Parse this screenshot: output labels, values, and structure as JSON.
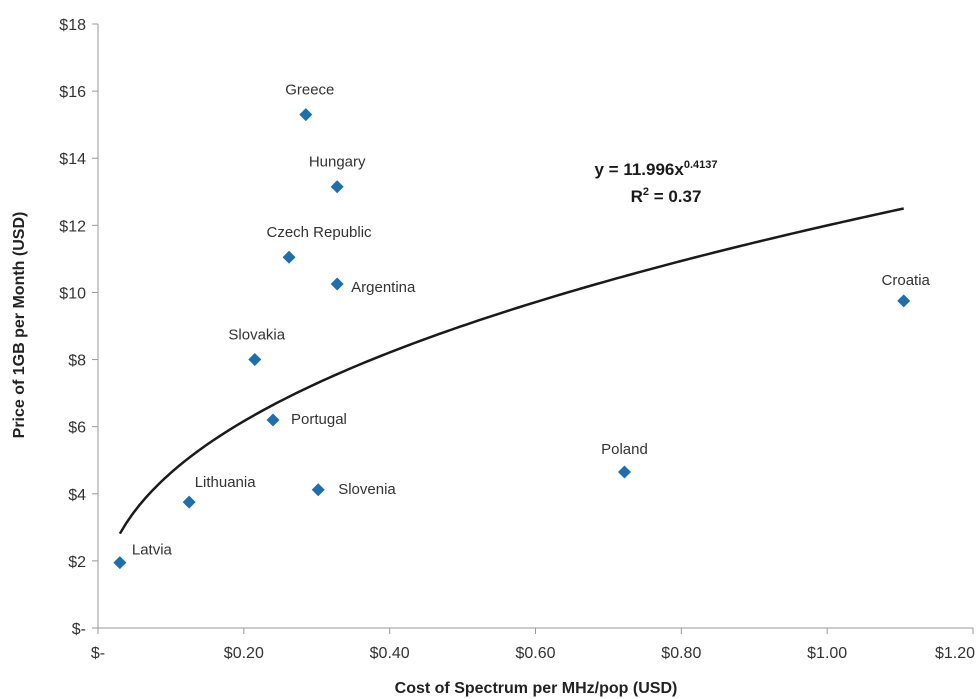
{
  "chart_data": {
    "type": "scatter",
    "title": "",
    "xlabel": "Cost of Spectrum per MHz/pop (USD)",
    "ylabel": "Price of 1GB per Month (USD)",
    "xlim": [
      0,
      1.2
    ],
    "ylim": [
      0,
      18
    ],
    "x_ticks": [
      0,
      0.2,
      0.4,
      0.6,
      0.8,
      1.0,
      1.2
    ],
    "x_tick_labels": [
      "$-",
      "$0.20",
      "$0.40",
      "$0.60",
      "$0.80",
      "$1.00",
      "$1.20"
    ],
    "y_ticks": [
      0,
      2,
      4,
      6,
      8,
      10,
      12,
      14,
      16,
      18
    ],
    "y_tick_labels": [
      "$-",
      "$2",
      "$4",
      "$6",
      "$8",
      "$10",
      "$12",
      "$14",
      "$16",
      "$18"
    ],
    "grid": false,
    "marker_color": "#1f6fad",
    "series": [
      {
        "points": [
          {
            "label": "Latvia",
            "x": 0.03,
            "y": 1.95
          },
          {
            "label": "Lithuania",
            "x": 0.125,
            "y": 3.75
          },
          {
            "label": "Slovakia",
            "x": 0.215,
            "y": 8.0
          },
          {
            "label": "Portugal",
            "x": 0.24,
            "y": 6.2
          },
          {
            "label": "Czech Republic",
            "x": 0.262,
            "y": 11.05
          },
          {
            "label": "Greece",
            "x": 0.285,
            "y": 15.3
          },
          {
            "label": "Slovenia",
            "x": 0.302,
            "y": 4.12
          },
          {
            "label": "Hungary",
            "x": 0.328,
            "y": 13.15
          },
          {
            "label": "Argentina",
            "x": 0.328,
            "y": 10.25
          },
          {
            "label": "Poland",
            "x": 0.722,
            "y": 4.65
          },
          {
            "label": "Croatia",
            "x": 1.105,
            "y": 9.75
          }
        ]
      }
    ],
    "trendline": {
      "type": "power",
      "coefficient": 11.996,
      "exponent": 0.4137,
      "x_range": [
        0.03,
        1.105
      ],
      "equation_prefix": "y = 11.996x",
      "equation_exponent": "0.4137",
      "r2_prefix": "R",
      "r2_sup": "2",
      "r2_suffix": " = 0.37"
    }
  }
}
